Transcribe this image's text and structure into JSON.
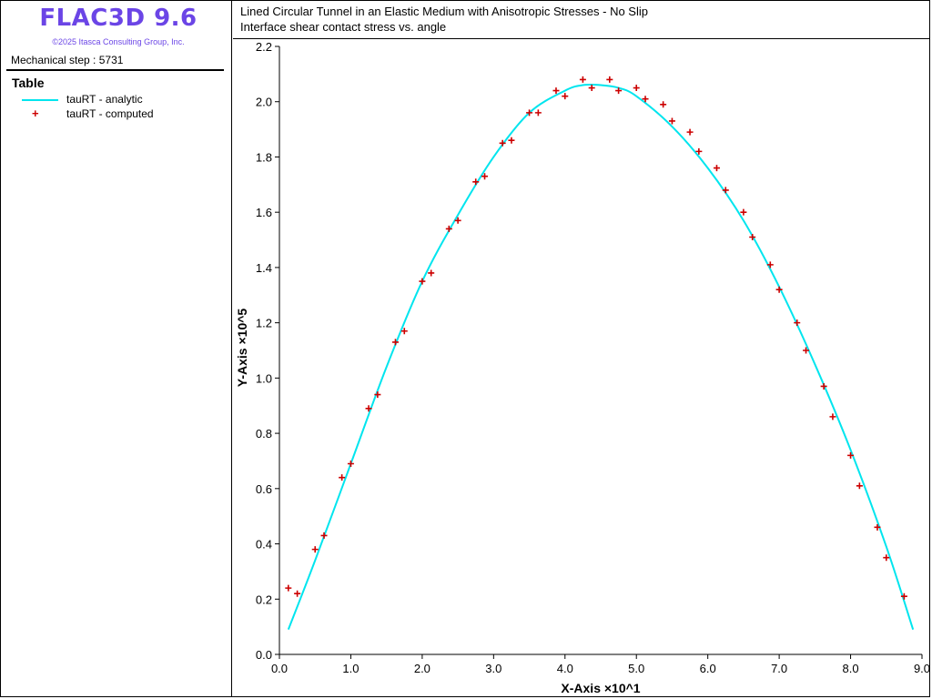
{
  "app": {
    "title": "FLAC3D 9.6",
    "copyright": "©2025 Itasca Consulting Group, Inc.",
    "step_label": "Mechanical step : 5731"
  },
  "legend": {
    "title": "Table",
    "items": [
      {
        "label": "tauRT - analytic",
        "color": "#00e5ee",
        "marker": "line"
      },
      {
        "label": "tauRT - computed",
        "color": "#cc0000",
        "marker": "+"
      }
    ]
  },
  "chart_data": {
    "type": "line",
    "title": "Lined Circular Tunnel in an Elastic Medium with Anisotropic Stresses - No Slip",
    "subtitle": "Interface shear contact stress vs. angle",
    "xlabel": "X-Axis ×10^1",
    "ylabel": "Y-Axis ×10^5",
    "xlim": [
      0.0,
      9.0
    ],
    "ylim": [
      0.0,
      2.2
    ],
    "xticks": [
      "0.0",
      "1.0",
      "2.0",
      "3.0",
      "4.0",
      "5.0",
      "6.0",
      "7.0",
      "8.0",
      "9.0"
    ],
    "yticks": [
      "0.0",
      "0.2",
      "0.4",
      "0.6",
      "0.8",
      "1.0",
      "1.2",
      "1.4",
      "1.6",
      "1.8",
      "2.0",
      "2.2"
    ],
    "grid": false,
    "legend_position": "left panel",
    "series": [
      {
        "name": "tauRT - analytic",
        "color": "#00e5ee",
        "style": "line",
        "x": [
          0.125,
          0.5,
          1.0,
          1.5,
          2.0,
          2.5,
          3.0,
          3.5,
          4.0,
          4.25,
          4.5,
          4.75,
          5.0,
          5.5,
          6.0,
          6.5,
          7.0,
          7.5,
          8.0,
          8.5,
          8.875
        ],
        "y": [
          0.09,
          0.34,
          0.69,
          1.04,
          1.35,
          1.59,
          1.8,
          1.96,
          2.04,
          2.06,
          2.06,
          2.05,
          2.02,
          1.91,
          1.76,
          1.57,
          1.33,
          1.05,
          0.74,
          0.39,
          0.09
        ]
      },
      {
        "name": "tauRT - computed",
        "color": "#cc0000",
        "style": "marker",
        "x": [
          0.125,
          0.25,
          0.5,
          0.625,
          0.875,
          1.0,
          1.25,
          1.375,
          1.625,
          1.75,
          2.0,
          2.125,
          2.375,
          2.5,
          2.75,
          2.875,
          3.125,
          3.25,
          3.5,
          3.625,
          3.875,
          4.0,
          4.25,
          4.375,
          4.625,
          4.75,
          5.0,
          5.125,
          5.375,
          5.5,
          5.75,
          5.875,
          6.125,
          6.25,
          6.5,
          6.625,
          6.875,
          7.0,
          7.25,
          7.375,
          7.625,
          7.75,
          8.0,
          8.125,
          8.375,
          8.5,
          8.75
        ],
        "y": [
          0.24,
          0.22,
          0.38,
          0.43,
          0.64,
          0.69,
          0.89,
          0.94,
          1.13,
          1.17,
          1.35,
          1.38,
          1.54,
          1.57,
          1.71,
          1.73,
          1.85,
          1.86,
          1.96,
          1.96,
          2.04,
          2.02,
          2.08,
          2.05,
          2.08,
          2.04,
          2.05,
          2.01,
          1.99,
          1.93,
          1.89,
          1.82,
          1.76,
          1.68,
          1.6,
          1.51,
          1.41,
          1.32,
          1.2,
          1.1,
          0.97,
          0.86,
          0.72,
          0.61,
          0.46,
          0.35,
          0.21
        ]
      }
    ]
  }
}
